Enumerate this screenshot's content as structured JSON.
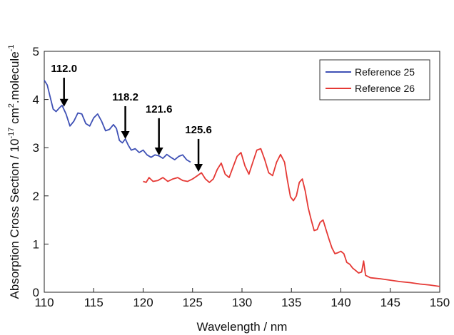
{
  "chart_data": {
    "type": "line",
    "xlabel": "Wavelength / nm",
    "ylabel_parts": [
      "Absorption Cross Section / 10",
      "-17",
      " cm",
      "2",
      ".molecule",
      "-1"
    ],
    "xlim": [
      110,
      150
    ],
    "ylim": [
      0,
      5
    ],
    "xticks": [
      "110",
      "115",
      "120",
      "125",
      "130",
      "135",
      "140",
      "145",
      "150"
    ],
    "yticks": [
      "0",
      "1",
      "2",
      "3",
      "4",
      "5"
    ],
    "grid": false,
    "legend_position": "top-right",
    "series": [
      {
        "name": "Reference 25",
        "color": "#3f51b5",
        "points": [
          [
            110.0,
            4.4
          ],
          [
            110.3,
            4.3
          ],
          [
            110.6,
            4.05
          ],
          [
            110.9,
            3.8
          ],
          [
            111.2,
            3.75
          ],
          [
            111.5,
            3.82
          ],
          [
            111.8,
            3.88
          ],
          [
            112.2,
            3.7
          ],
          [
            112.6,
            3.45
          ],
          [
            113.0,
            3.55
          ],
          [
            113.4,
            3.72
          ],
          [
            113.8,
            3.7
          ],
          [
            114.2,
            3.5
          ],
          [
            114.6,
            3.45
          ],
          [
            115.0,
            3.62
          ],
          [
            115.4,
            3.7
          ],
          [
            115.8,
            3.55
          ],
          [
            116.2,
            3.35
          ],
          [
            116.6,
            3.38
          ],
          [
            117.0,
            3.48
          ],
          [
            117.3,
            3.4
          ],
          [
            117.6,
            3.15
          ],
          [
            117.9,
            3.1
          ],
          [
            118.2,
            3.18
          ],
          [
            118.5,
            3.05
          ],
          [
            118.8,
            2.95
          ],
          [
            119.2,
            2.98
          ],
          [
            119.6,
            2.9
          ],
          [
            120.0,
            2.95
          ],
          [
            120.4,
            2.85
          ],
          [
            120.8,
            2.8
          ],
          [
            121.2,
            2.85
          ],
          [
            121.6,
            2.83
          ],
          [
            122.0,
            2.78
          ],
          [
            122.4,
            2.86
          ],
          [
            122.8,
            2.8
          ],
          [
            123.2,
            2.75
          ],
          [
            123.6,
            2.82
          ],
          [
            124.0,
            2.85
          ],
          [
            124.4,
            2.75
          ],
          [
            124.8,
            2.7
          ]
        ]
      },
      {
        "name": "Reference 26",
        "color": "#e53935",
        "points": [
          [
            120.0,
            2.3
          ],
          [
            120.3,
            2.28
          ],
          [
            120.6,
            2.38
          ],
          [
            121.0,
            2.3
          ],
          [
            121.5,
            2.32
          ],
          [
            122.0,
            2.38
          ],
          [
            122.5,
            2.3
          ],
          [
            123.0,
            2.35
          ],
          [
            123.5,
            2.38
          ],
          [
            124.0,
            2.32
          ],
          [
            124.5,
            2.3
          ],
          [
            125.0,
            2.35
          ],
          [
            125.5,
            2.42
          ],
          [
            125.9,
            2.48
          ],
          [
            126.3,
            2.35
          ],
          [
            126.7,
            2.28
          ],
          [
            127.1,
            2.35
          ],
          [
            127.5,
            2.55
          ],
          [
            127.9,
            2.68
          ],
          [
            128.3,
            2.45
          ],
          [
            128.7,
            2.38
          ],
          [
            129.1,
            2.6
          ],
          [
            129.5,
            2.82
          ],
          [
            129.9,
            2.9
          ],
          [
            130.3,
            2.62
          ],
          [
            130.7,
            2.45
          ],
          [
            131.1,
            2.7
          ],
          [
            131.5,
            2.95
          ],
          [
            131.9,
            2.98
          ],
          [
            132.3,
            2.75
          ],
          [
            132.7,
            2.48
          ],
          [
            133.1,
            2.42
          ],
          [
            133.5,
            2.7
          ],
          [
            133.9,
            2.86
          ],
          [
            134.3,
            2.7
          ],
          [
            134.6,
            2.32
          ],
          [
            134.9,
            1.98
          ],
          [
            135.2,
            1.9
          ],
          [
            135.5,
            2.0
          ],
          [
            135.8,
            2.28
          ],
          [
            136.1,
            2.35
          ],
          [
            136.4,
            2.1
          ],
          [
            136.7,
            1.75
          ],
          [
            137.0,
            1.5
          ],
          [
            137.3,
            1.28
          ],
          [
            137.6,
            1.3
          ],
          [
            137.9,
            1.45
          ],
          [
            138.2,
            1.5
          ],
          [
            138.5,
            1.3
          ],
          [
            138.8,
            1.1
          ],
          [
            139.1,
            0.92
          ],
          [
            139.4,
            0.8
          ],
          [
            139.7,
            0.82
          ],
          [
            140.0,
            0.85
          ],
          [
            140.3,
            0.8
          ],
          [
            140.6,
            0.62
          ],
          [
            140.9,
            0.58
          ],
          [
            141.2,
            0.5
          ],
          [
            141.5,
            0.45
          ],
          [
            141.8,
            0.4
          ],
          [
            142.1,
            0.42
          ],
          [
            142.3,
            0.65
          ],
          [
            142.5,
            0.35
          ],
          [
            143.0,
            0.3
          ],
          [
            144.0,
            0.28
          ],
          [
            145.0,
            0.25
          ],
          [
            146.0,
            0.22
          ],
          [
            147.0,
            0.2
          ],
          [
            148.0,
            0.17
          ],
          [
            149.0,
            0.15
          ],
          [
            150.0,
            0.12
          ]
        ]
      }
    ],
    "annotations": [
      {
        "label": "112.0",
        "x": 112.0,
        "text_y": 4.57,
        "tip_y": 3.85
      },
      {
        "label": "118.2",
        "x": 118.2,
        "text_y": 3.98,
        "tip_y": 3.18
      },
      {
        "label": "121.6",
        "x": 121.6,
        "text_y": 3.73,
        "tip_y": 2.84
      },
      {
        "label": "125.6",
        "x": 125.6,
        "text_y": 3.3,
        "tip_y": 2.5
      }
    ]
  }
}
